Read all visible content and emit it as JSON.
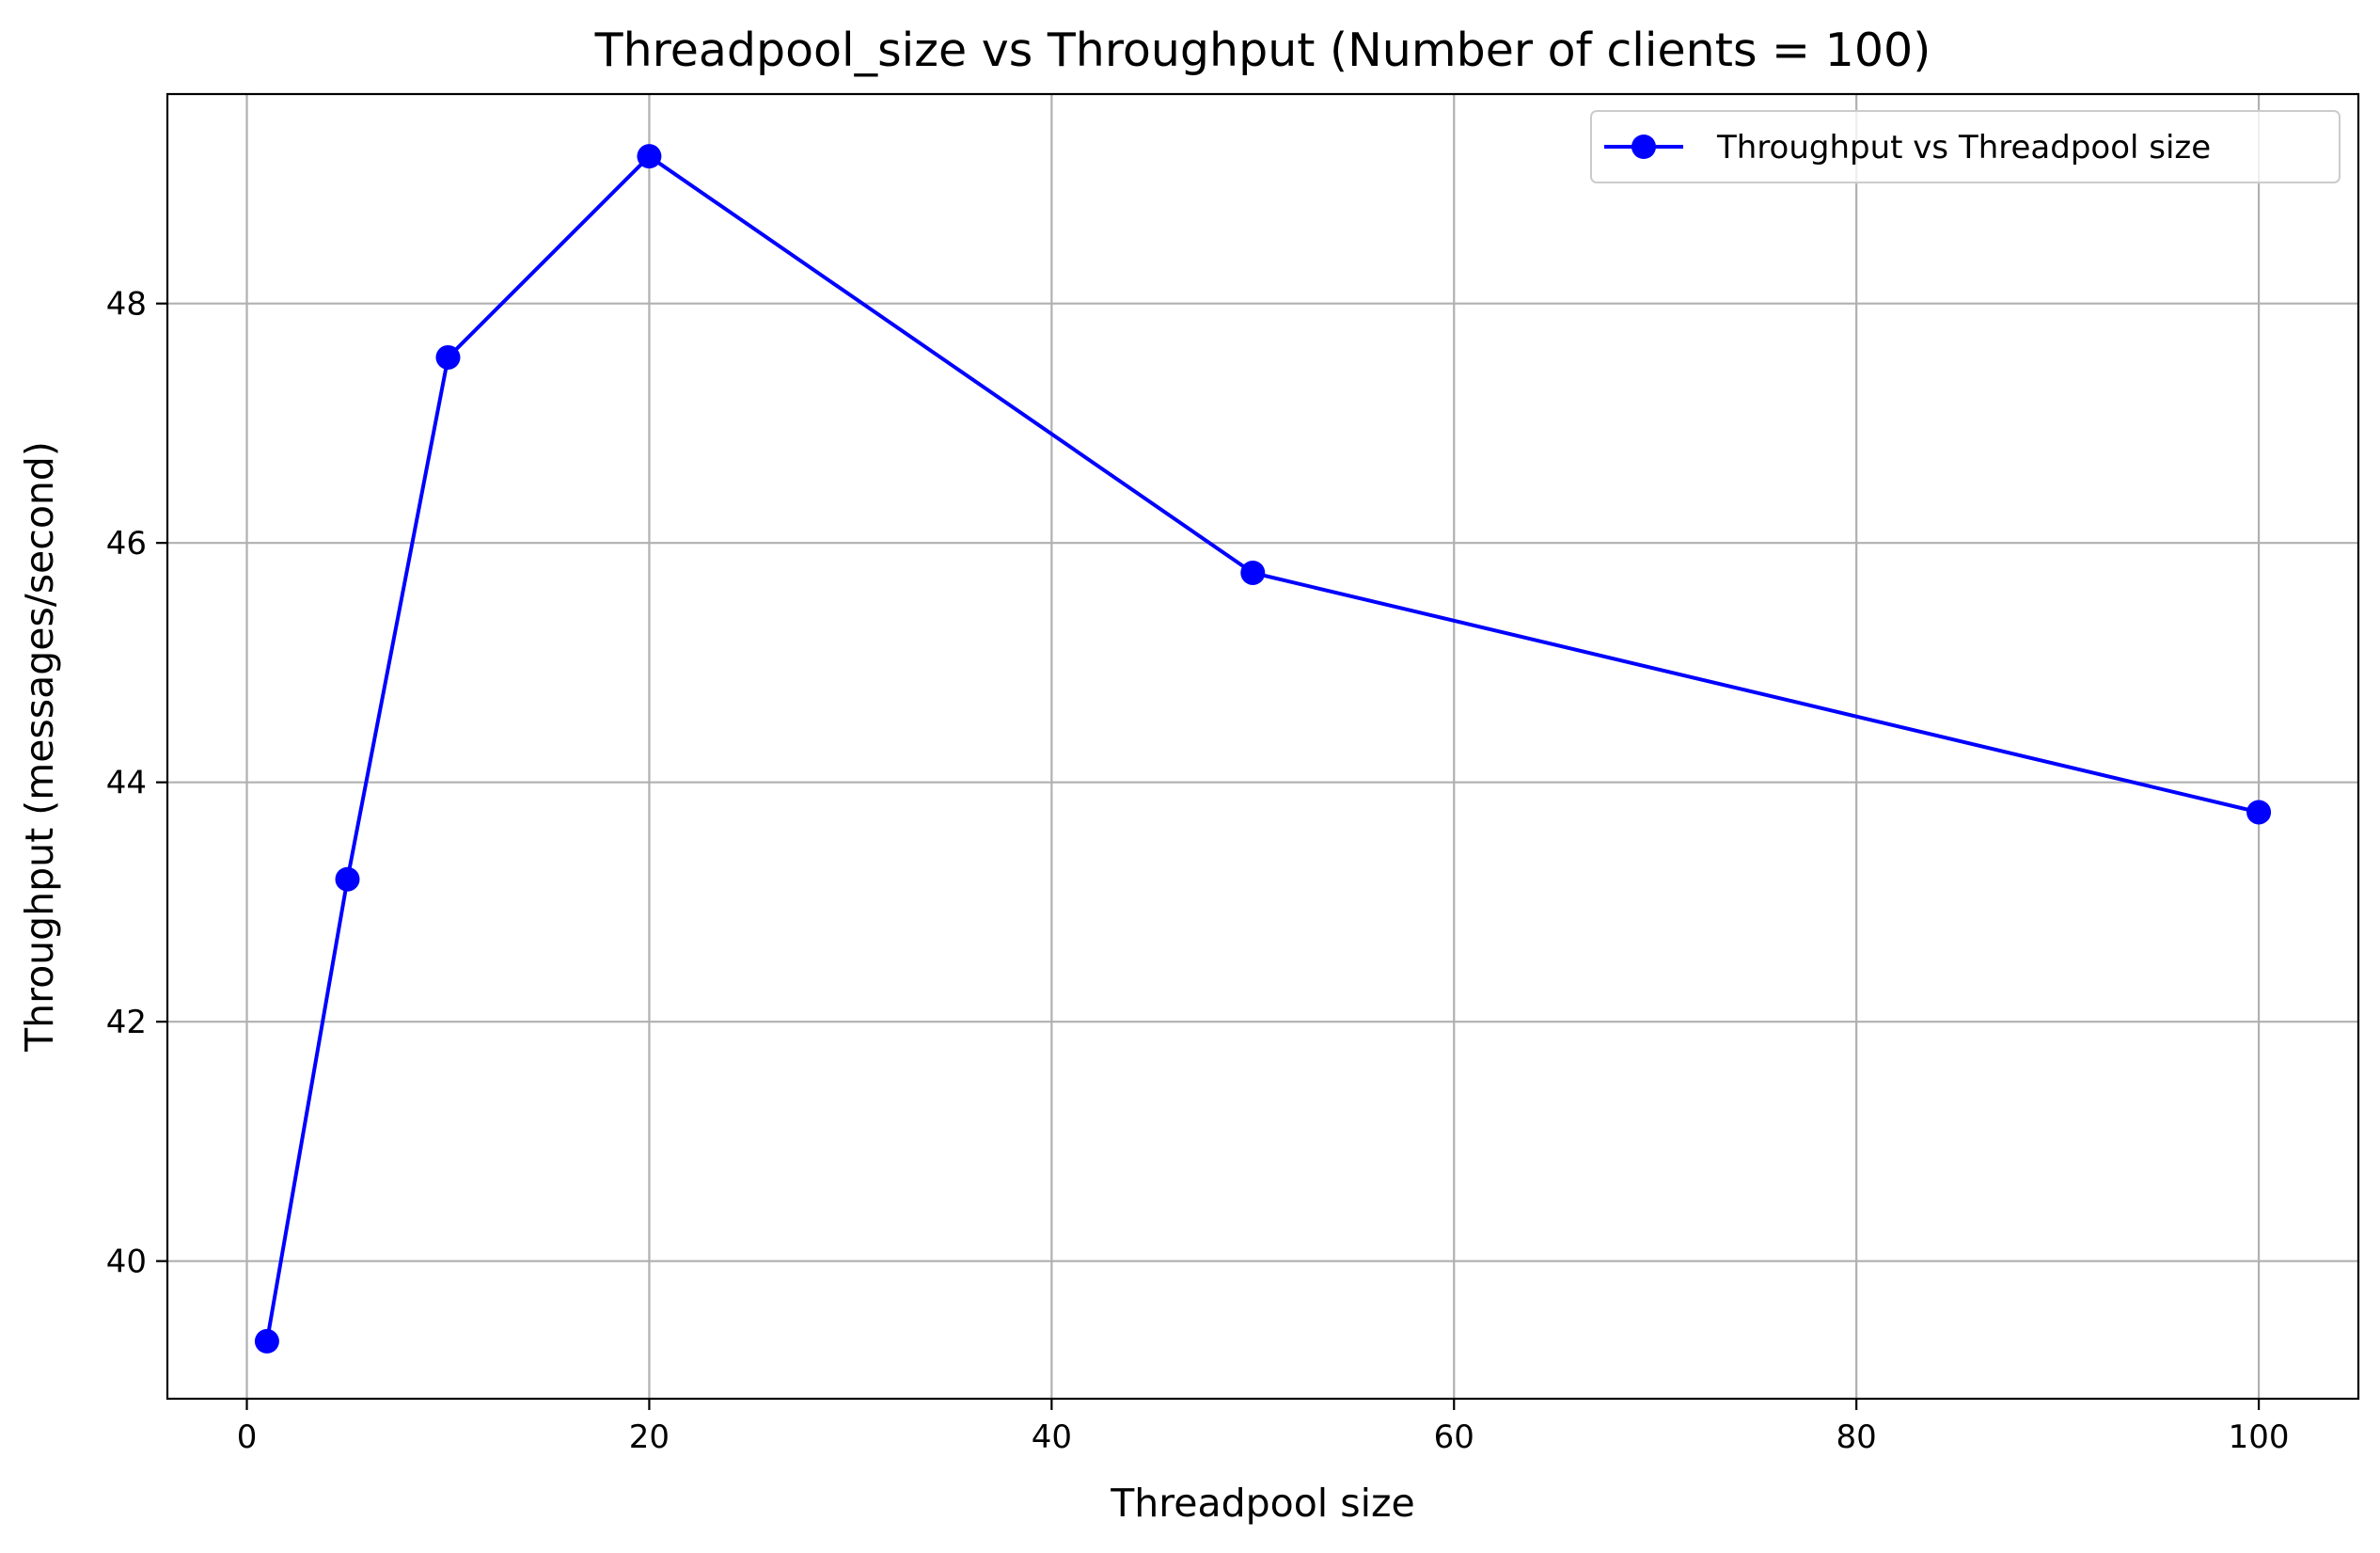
{
  "chart_data": {
    "type": "line",
    "title": "Threadpool_size vs Throughput (Number of clients = 100)",
    "xlabel": "Threadpool size",
    "ylabel": "Throughput (messages/second)",
    "xlim": [
      -3.95,
      104.95
    ],
    "ylim": [
      38.85,
      49.75
    ],
    "xticks": [
      0,
      20,
      40,
      60,
      80,
      100
    ],
    "yticks": [
      40,
      42,
      44,
      46,
      48
    ],
    "xtick_labels": [
      "0",
      "20",
      "40",
      "60",
      "80",
      "100"
    ],
    "ytick_labels": [
      "40",
      "42",
      "44",
      "46",
      "48"
    ],
    "grid": true,
    "legend_position": "top-right",
    "series": [
      {
        "name": "Throughput vs Threadpool size",
        "color": "#0000ff",
        "marker": "circle",
        "x": [
          1,
          5,
          10,
          20,
          50,
          100
        ],
        "y": [
          39.33,
          43.19,
          47.55,
          49.23,
          45.75,
          43.75
        ]
      }
    ]
  }
}
